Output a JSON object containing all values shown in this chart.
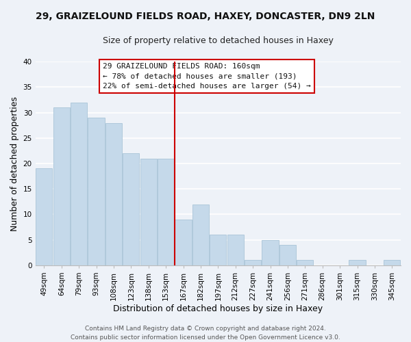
{
  "title": "29, GRAIZELOUND FIELDS ROAD, HAXEY, DONCASTER, DN9 2LN",
  "subtitle": "Size of property relative to detached houses in Haxey",
  "xlabel": "Distribution of detached houses by size in Haxey",
  "ylabel": "Number of detached properties",
  "bar_labels": [
    "49sqm",
    "64sqm",
    "79sqm",
    "93sqm",
    "108sqm",
    "123sqm",
    "138sqm",
    "153sqm",
    "167sqm",
    "182sqm",
    "197sqm",
    "212sqm",
    "227sqm",
    "241sqm",
    "256sqm",
    "271sqm",
    "286sqm",
    "301sqm",
    "315sqm",
    "330sqm",
    "345sqm"
  ],
  "bar_values": [
    19,
    31,
    32,
    29,
    28,
    22,
    21,
    21,
    9,
    12,
    6,
    6,
    1,
    5,
    4,
    1,
    0,
    0,
    1,
    0,
    1
  ],
  "bar_color": "#c5d9ea",
  "bar_edge_color": "#a8c4d8",
  "vline_color": "#cc0000",
  "vline_pos": 7.5,
  "ylim": [
    0,
    40
  ],
  "yticks": [
    0,
    5,
    10,
    15,
    20,
    25,
    30,
    35,
    40
  ],
  "annotation_title": "29 GRAIZELOUND FIELDS ROAD: 160sqm",
  "annotation_line1": "← 78% of detached houses are smaller (193)",
  "annotation_line2": "22% of semi-detached houses are larger (54) →",
  "annotation_box_facecolor": "#ffffff",
  "annotation_border_color": "#cc0000",
  "footer1": "Contains HM Land Registry data © Crown copyright and database right 2024.",
  "footer2": "Contains public sector information licensed under the Open Government Licence v3.0.",
  "bg_color": "#eef2f8",
  "grid_color": "#ffffff",
  "title_fontsize": 10,
  "subtitle_fontsize": 9,
  "axis_label_fontsize": 9,
  "tick_fontsize": 7.5,
  "annotation_fontsize": 8,
  "footer_fontsize": 6.5
}
